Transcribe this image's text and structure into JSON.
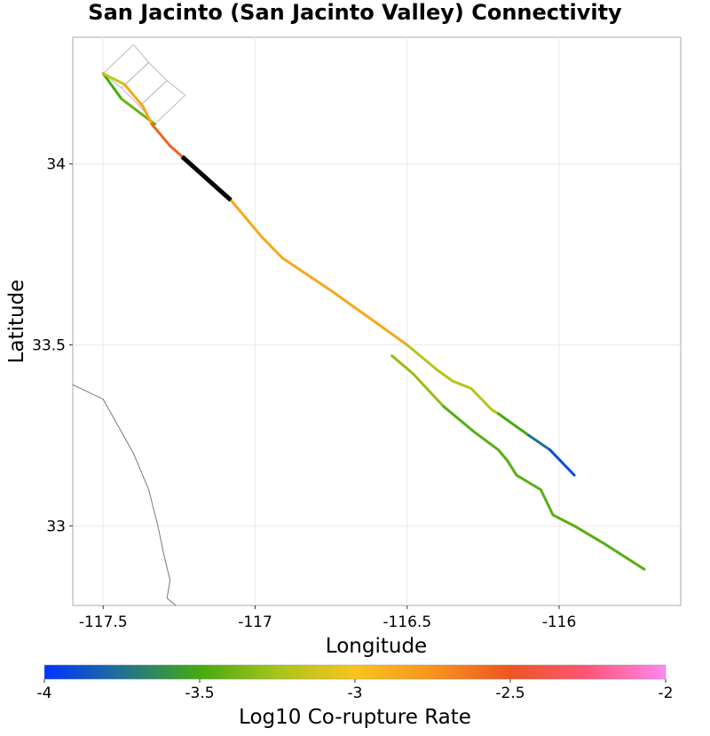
{
  "chart_data": {
    "type": "line",
    "title": "San Jacinto (San Jacinto Valley) Connectivity",
    "xlabel": "Longitude",
    "ylabel": "Latitude",
    "xlim": [
      -117.6,
      -115.6
    ],
    "ylim": [
      32.78,
      34.35
    ],
    "xticks": [
      -117.5,
      -117,
      -116.5,
      -116
    ],
    "xtick_labels": [
      "-117.5",
      "-117",
      "-116.5",
      "-116"
    ],
    "yticks": [
      34,
      33.5,
      33
    ],
    "ytick_labels": [
      "34",
      "33.5",
      "33"
    ],
    "grid": true,
    "colorbar": {
      "label": "Log10 Co-rupture Rate",
      "min": -4,
      "max": -2,
      "ticks": [
        -4,
        -3.5,
        -3,
        -2.5,
        -2
      ],
      "tick_labels": [
        "-4",
        "-3.5",
        "-3",
        "-2.5",
        "-2"
      ],
      "stops": [
        {
          "value": -4.0,
          "color": "#0033ff"
        },
        {
          "value": -3.8,
          "color": "#1a66aa"
        },
        {
          "value": -3.5,
          "color": "#44aa11"
        },
        {
          "value": -3.25,
          "color": "#a8c41a"
        },
        {
          "value": -3.0,
          "color": "#f8c41e"
        },
        {
          "value": -2.75,
          "color": "#f7941d"
        },
        {
          "value": -2.5,
          "color": "#ee5522"
        },
        {
          "value": -2.25,
          "color": "#ff5577"
        },
        {
          "value": -2.0,
          "color": "#ff88ee"
        }
      ]
    },
    "target_section": {
      "color": "#000000",
      "points": [
        [
          -117.24,
          34.02
        ],
        [
          -117.08,
          33.9
        ]
      ]
    },
    "sections": [
      {
        "rate": -3.5,
        "points": [
          [
            -117.5,
            34.25
          ],
          [
            -117.44,
            34.18
          ]
        ]
      },
      {
        "rate": -3.4,
        "points": [
          [
            -117.44,
            34.18
          ],
          [
            -117.33,
            34.11
          ]
        ]
      },
      {
        "rate": -3.15,
        "points": [
          [
            -117.5,
            34.25
          ],
          [
            -117.43,
            34.22
          ]
        ]
      },
      {
        "rate": -2.85,
        "points": [
          [
            -117.43,
            34.22
          ],
          [
            -117.37,
            34.16
          ],
          [
            -117.34,
            34.11
          ]
        ]
      },
      {
        "rate": -2.55,
        "points": [
          [
            -117.34,
            34.11
          ],
          [
            -117.28,
            34.05
          ],
          [
            -117.24,
            34.02
          ]
        ]
      },
      {
        "rate": -2.85,
        "points": [
          [
            -117.08,
            33.9
          ],
          [
            -116.98,
            33.8
          ],
          [
            -116.91,
            33.74
          ],
          [
            -116.75,
            33.65
          ],
          [
            -116.6,
            33.56
          ],
          [
            -116.5,
            33.5
          ]
        ]
      },
      {
        "rate": -3.2,
        "points": [
          [
            -116.5,
            33.5
          ],
          [
            -116.4,
            33.43
          ],
          [
            -116.35,
            33.4
          ],
          [
            -116.29,
            33.38
          ],
          [
            -116.22,
            33.32
          ],
          [
            -116.2,
            33.31
          ]
        ]
      },
      {
        "rate": -3.5,
        "points": [
          [
            -116.2,
            33.31
          ],
          [
            -116.15,
            33.28
          ],
          [
            -116.1,
            33.25
          ]
        ]
      },
      {
        "rate": -3.75,
        "points": [
          [
            -116.1,
            33.25
          ],
          [
            -116.03,
            33.21
          ]
        ]
      },
      {
        "rate": -3.9,
        "points": [
          [
            -116.03,
            33.21
          ],
          [
            -115.95,
            33.14
          ]
        ]
      },
      {
        "rate": -3.3,
        "points": [
          [
            -116.55,
            33.47
          ],
          [
            -116.48,
            33.42
          ],
          [
            -116.38,
            33.33
          ]
        ]
      },
      {
        "rate": -3.45,
        "points": [
          [
            -116.38,
            33.33
          ],
          [
            -116.28,
            33.26
          ],
          [
            -116.2,
            33.21
          ],
          [
            -116.17,
            33.18
          ],
          [
            -116.14,
            33.14
          ],
          [
            -116.06,
            33.1
          ],
          [
            -116.02,
            33.03
          ],
          [
            -115.95,
            33.0
          ],
          [
            -115.85,
            32.95
          ],
          [
            -115.72,
            32.88
          ]
        ]
      }
    ],
    "subsection_polygons": [
      [
        [
          -117.5,
          34.25
        ],
        [
          -117.4,
          34.33
        ],
        [
          -117.35,
          34.28
        ],
        [
          -117.44,
          34.21
        ]
      ],
      [
        [
          -117.44,
          34.21
        ],
        [
          -117.35,
          34.28
        ],
        [
          -117.29,
          34.23
        ],
        [
          -117.38,
          34.16
        ]
      ],
      [
        [
          -117.38,
          34.16
        ],
        [
          -117.29,
          34.23
        ],
        [
          -117.23,
          34.19
        ],
        [
          -117.33,
          34.11
        ]
      ]
    ],
    "coastline": [
      [
        -117.6,
        33.39
      ],
      [
        -117.5,
        33.35
      ],
      [
        -117.4,
        33.2
      ],
      [
        -117.35,
        33.1
      ],
      [
        -117.32,
        33.0
      ],
      [
        -117.3,
        32.92
      ],
      [
        -117.28,
        32.85
      ],
      [
        -117.29,
        32.8
      ],
      [
        -117.26,
        32.78
      ]
    ]
  }
}
